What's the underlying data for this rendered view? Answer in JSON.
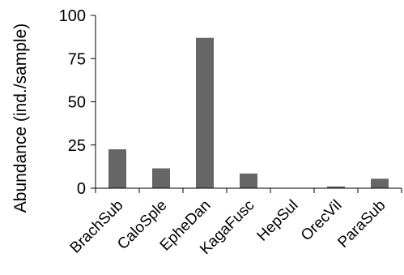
{
  "chart_data": {
    "type": "bar",
    "title": "",
    "xlabel": "",
    "ylabel": "Abundance (ind./sample)",
    "categories": [
      "BrachSub",
      "CaloSple",
      "EpheDan",
      "KagaFusc",
      "HepSul",
      "OrecVil",
      "ParaSub"
    ],
    "values": [
      22.5,
      11.5,
      87,
      8.5,
      0,
      1,
      5.5
    ],
    "ylim": [
      0,
      100
    ],
    "yticks": [
      0,
      25,
      50,
      75,
      100
    ],
    "grid": false,
    "legend": "none",
    "bar_color": "#666666",
    "axis_color": "#000000"
  }
}
